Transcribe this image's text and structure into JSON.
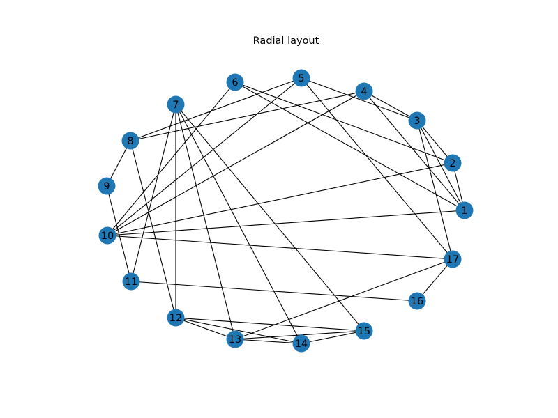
{
  "title": "Radial layout",
  "colors": {
    "node_fill": "#1f77b4",
    "edge": "#000000",
    "label": "#000000",
    "background": "#ffffff"
  },
  "nodes": [
    {
      "id": "1",
      "label": "1"
    },
    {
      "id": "2",
      "label": "2"
    },
    {
      "id": "3",
      "label": "3"
    },
    {
      "id": "4",
      "label": "4"
    },
    {
      "id": "5",
      "label": "5"
    },
    {
      "id": "6",
      "label": "6"
    },
    {
      "id": "7",
      "label": "7"
    },
    {
      "id": "8",
      "label": "8"
    },
    {
      "id": "9",
      "label": "9"
    },
    {
      "id": "10",
      "label": "10"
    },
    {
      "id": "11",
      "label": "11"
    },
    {
      "id": "12",
      "label": "12"
    },
    {
      "id": "13",
      "label": "13"
    },
    {
      "id": "14",
      "label": "14"
    },
    {
      "id": "15",
      "label": "15"
    },
    {
      "id": "16",
      "label": "16"
    },
    {
      "id": "17",
      "label": "17"
    }
  ],
  "edges": [
    [
      "1",
      "2"
    ],
    [
      "1",
      "3"
    ],
    [
      "1",
      "4"
    ],
    [
      "1",
      "6"
    ],
    [
      "1",
      "10"
    ],
    [
      "2",
      "3"
    ],
    [
      "2",
      "6"
    ],
    [
      "2",
      "10"
    ],
    [
      "3",
      "4"
    ],
    [
      "3",
      "5"
    ],
    [
      "3",
      "17"
    ],
    [
      "4",
      "8"
    ],
    [
      "4",
      "10"
    ],
    [
      "5",
      "8"
    ],
    [
      "5",
      "10"
    ],
    [
      "5",
      "17"
    ],
    [
      "6",
      "10"
    ],
    [
      "7",
      "11"
    ],
    [
      "7",
      "12"
    ],
    [
      "7",
      "13"
    ],
    [
      "7",
      "14"
    ],
    [
      "7",
      "15"
    ],
    [
      "8",
      "9"
    ],
    [
      "8",
      "12"
    ],
    [
      "9",
      "11"
    ],
    [
      "10",
      "17"
    ],
    [
      "11",
      "16"
    ],
    [
      "12",
      "13"
    ],
    [
      "12",
      "14"
    ],
    [
      "12",
      "15"
    ],
    [
      "13",
      "14"
    ],
    [
      "13",
      "15"
    ],
    [
      "13",
      "17"
    ],
    [
      "14",
      "15"
    ],
    [
      "16",
      "17"
    ]
  ]
}
